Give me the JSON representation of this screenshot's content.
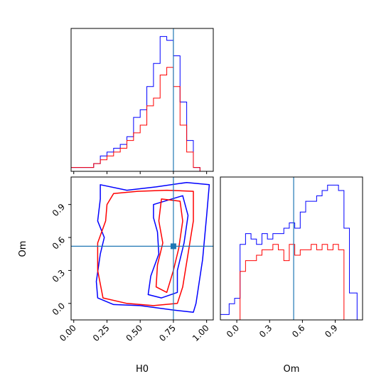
{
  "colors": {
    "blue": "#0000ff",
    "red": "#ff0000",
    "truth": "#1f77b4",
    "frame": "#000000"
  },
  "chart_data": [
    {
      "type": "histogram",
      "panel": "H0 marginal",
      "xlim": [
        -0.02,
        1.05
      ],
      "bin_edges": [
        -0.02,
        0.15,
        0.2,
        0.25,
        0.3,
        0.35,
        0.4,
        0.45,
        0.5,
        0.55,
        0.6,
        0.65,
        0.7,
        0.75,
        0.8,
        0.85,
        0.9,
        0.95
      ],
      "series": [
        {
          "color": "blue",
          "values": [
            1,
            2,
            4,
            5,
            6,
            7,
            9,
            14,
            16,
            22,
            28,
            35,
            34,
            30,
            18,
            8,
            1
          ]
        },
        {
          "color": "red",
          "values": [
            1,
            2,
            3,
            4,
            5,
            6,
            8,
            10,
            12,
            17,
            19,
            25,
            27,
            22,
            12,
            5,
            1
          ]
        }
      ],
      "truth": 0.75
    },
    {
      "type": "contour",
      "panel": "H0 vs Om joint",
      "xlabel": "H0",
      "ylabel": "Om",
      "xlim": [
        -0.02,
        1.05
      ],
      "ylim": [
        -0.15,
        1.15
      ],
      "x_ticks": [
        "0.00",
        "0.25",
        "0.50",
        "0.75",
        "1.00"
      ],
      "x_tick_values": [
        0.0,
        0.25,
        0.5,
        0.75,
        1.0
      ],
      "y_ticks": [
        "0.0",
        "0.3",
        "0.6",
        "0.9"
      ],
      "y_tick_values": [
        0.0,
        0.3,
        0.6,
        0.9
      ],
      "truth": {
        "x": 0.75,
        "y": 0.52
      },
      "series": [
        {
          "color": "blue",
          "contours": [
            [
              [
                0.2,
                1.08
              ],
              [
                0.4,
                1.03
              ],
              [
                0.62,
                1.06
              ],
              [
                0.85,
                1.1
              ],
              [
                1.02,
                1.08
              ],
              [
                1.0,
                0.8
              ],
              [
                0.97,
                0.4
              ],
              [
                0.92,
                0.0
              ],
              [
                0.9,
                -0.08
              ],
              [
                0.75,
                -0.06
              ],
              [
                0.5,
                -0.02
              ],
              [
                0.3,
                -0.01
              ],
              [
                0.18,
                0.05
              ],
              [
                0.17,
                0.2
              ],
              [
                0.2,
                0.45
              ],
              [
                0.23,
                0.6
              ],
              [
                0.18,
                0.75
              ],
              [
                0.2,
                0.95
              ]
            ],
            [
              [
                0.6,
                0.9
              ],
              [
                0.82,
                0.98
              ],
              [
                0.86,
                0.8
              ],
              [
                0.83,
                0.55
              ],
              [
                0.78,
                0.3
              ],
              [
                0.78,
                0.1
              ],
              [
                0.66,
                0.05
              ],
              [
                0.56,
                0.08
              ],
              [
                0.58,
                0.25
              ],
              [
                0.64,
                0.45
              ],
              [
                0.63,
                0.65
              ],
              [
                0.6,
                0.78
              ]
            ]
          ]
        },
        {
          "color": "red",
          "contours": [
            [
              [
                0.3,
                1.0
              ],
              [
                0.48,
                1.02
              ],
              [
                0.7,
                1.03
              ],
              [
                0.9,
                1.02
              ],
              [
                0.9,
                0.75
              ],
              [
                0.86,
                0.45
              ],
              [
                0.82,
                0.15
              ],
              [
                0.78,
                0.0
              ],
              [
                0.6,
                -0.02
              ],
              [
                0.4,
                0.0
              ],
              [
                0.22,
                0.05
              ],
              [
                0.18,
                0.3
              ],
              [
                0.18,
                0.55
              ],
              [
                0.24,
                0.75
              ],
              [
                0.25,
                0.9
              ]
            ],
            [
              [
                0.66,
                0.95
              ],
              [
                0.8,
                0.93
              ],
              [
                0.82,
                0.75
              ],
              [
                0.79,
                0.5
              ],
              [
                0.75,
                0.3
              ],
              [
                0.7,
                0.1
              ],
              [
                0.62,
                0.15
              ],
              [
                0.63,
                0.35
              ],
              [
                0.67,
                0.55
              ],
              [
                0.64,
                0.75
              ]
            ]
          ]
        }
      ]
    },
    {
      "type": "histogram",
      "panel": "Om marginal",
      "xlabel": "Om",
      "xlim": [
        -0.15,
        1.15
      ],
      "x_ticks": [
        "0.0",
        "0.3",
        "0.6",
        "0.9"
      ],
      "x_tick_values": [
        0.0,
        0.3,
        0.6,
        0.9
      ],
      "bin_edges": [
        -0.15,
        -0.07,
        -0.02,
        0.03,
        0.08,
        0.13,
        0.18,
        0.23,
        0.28,
        0.33,
        0.38,
        0.43,
        0.48,
        0.53,
        0.58,
        0.63,
        0.68,
        0.73,
        0.78,
        0.83,
        0.88,
        0.93,
        0.98,
        1.03,
        1.1
      ],
      "series": [
        {
          "color": "blue",
          "values": [
            1,
            3,
            4,
            14,
            16,
            15,
            14,
            16,
            15,
            16,
            16,
            17,
            18,
            17,
            20,
            22,
            22,
            23,
            24,
            25,
            25,
            24,
            17,
            5
          ]
        },
        {
          "color": "red",
          "values": [
            0,
            0,
            0,
            9,
            11,
            11,
            12,
            13,
            13,
            14,
            13,
            11,
            14,
            12,
            13,
            13,
            14,
            13,
            14,
            13,
            14,
            13,
            0,
            0
          ]
        }
      ],
      "truth": 0.52
    }
  ]
}
